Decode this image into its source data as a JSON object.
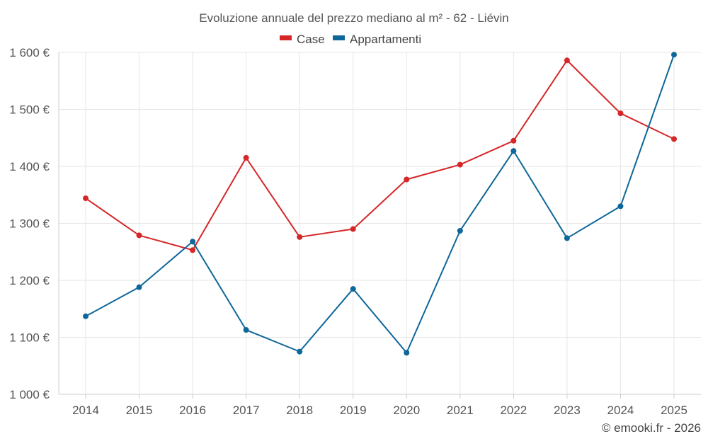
{
  "chart_data": {
    "type": "line",
    "title": "Evoluzione annuale del prezzo mediano al m² - 62 - Liévin",
    "categories": [
      "2014",
      "2015",
      "2016",
      "2017",
      "2018",
      "2019",
      "2020",
      "2021",
      "2022",
      "2023",
      "2024",
      "2025"
    ],
    "series": [
      {
        "name": "Case",
        "color": "#d62728",
        "values": [
          1344,
          1279,
          1253,
          1415,
          1276,
          1290,
          1377,
          1403,
          1445,
          1586,
          1493,
          1448
        ]
      },
      {
        "name": "Appartamenti",
        "color": "#0e6699",
        "values": [
          1137,
          1188,
          1268,
          1113,
          1075,
          1185,
          1073,
          1287,
          1427,
          1274,
          1330,
          1596
        ]
      }
    ],
    "ylim": [
      1000,
      1600
    ],
    "yticks": [
      1000,
      1100,
      1200,
      1300,
      1400,
      1500,
      1600
    ],
    "ytick_labels": [
      "1 000 €",
      "1 100 €",
      "1 200 €",
      "1 300 €",
      "1 400 €",
      "1 500 €",
      "1 600 €"
    ],
    "xlabel": "",
    "ylabel": "",
    "legend": "top-center",
    "grid": true
  },
  "credit": "© emooki.fr - 2026"
}
